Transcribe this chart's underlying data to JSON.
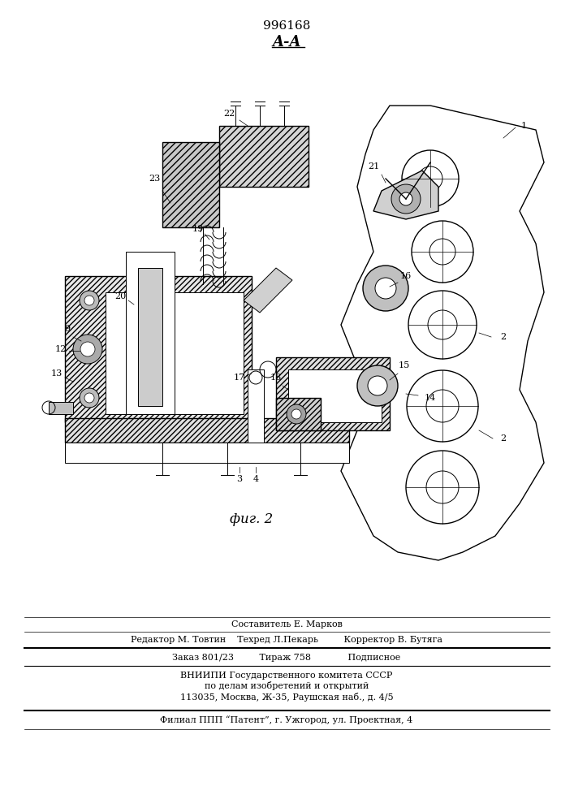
{
  "patent_number": "996168",
  "section_label": "A-A",
  "fig_label": "фиг. 2",
  "bg_color": "#ffffff",
  "line_color": "#000000",
  "hatch_color": "#000000",
  "footer_lines": [
    "Составитель Е. Марков",
    "Редактор М. Товтин    Техред Л.Пекарь         Корректор В. Бутяга",
    "Заказ 801/23         Тираж 758             Подписное",
    "ВНИИПИ Государственного комитета СССР",
    "по делам изобретений и открытий",
    "113035, Москва, Ж-35, Раушская наб., д. 4/5",
    "Филиал ППП “Патент”, г. Ужгород, ул. Проектная, 4"
  ],
  "numbers": [
    "1",
    "2",
    "2",
    "3",
    "4",
    "9",
    "12",
    "13",
    "14",
    "15",
    "16",
    "17",
    "18",
    "19",
    "20",
    "21",
    "22",
    "23"
  ],
  "fig_width": 7.07,
  "fig_height": 10.0,
  "dpi": 100
}
